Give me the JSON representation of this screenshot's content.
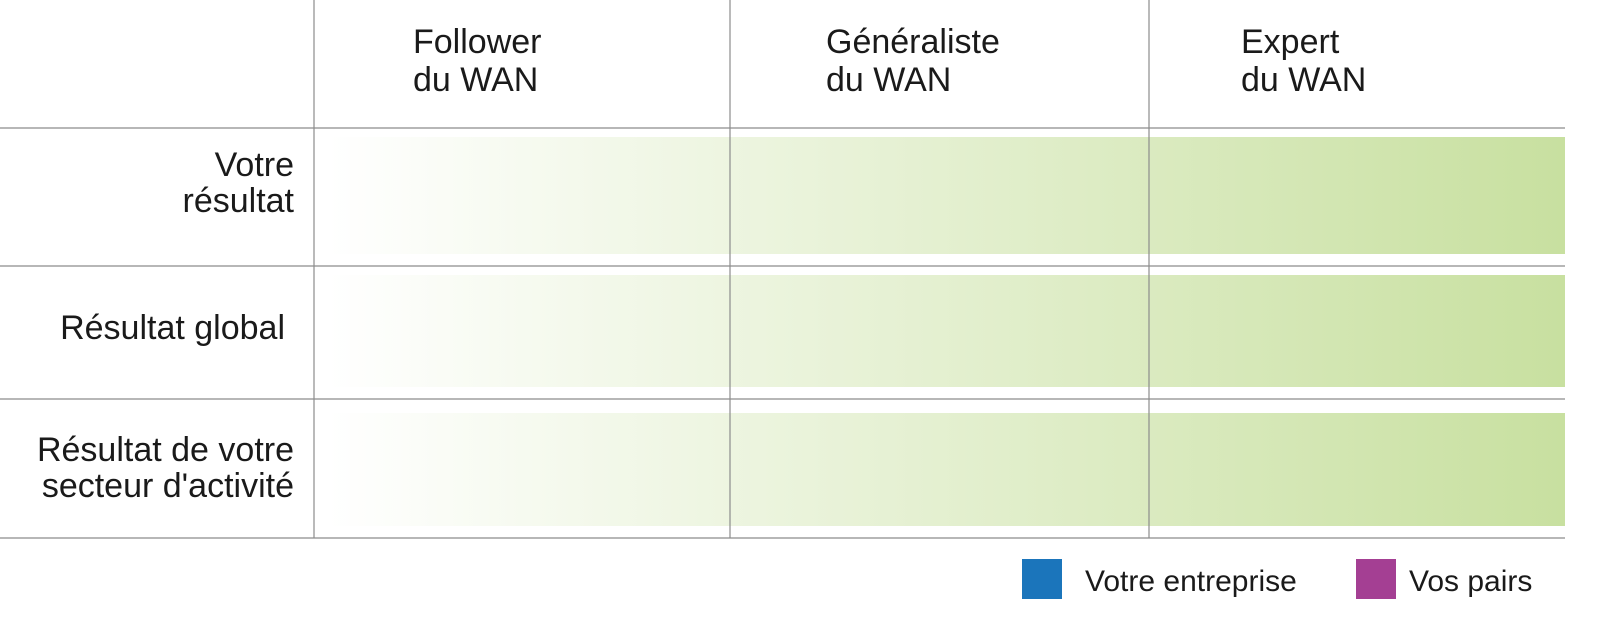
{
  "chart_data": {
    "type": "table",
    "title": "",
    "columns": [
      [
        "Follower",
        "du WAN"
      ],
      [
        "Généraliste",
        "du WAN"
      ],
      [
        "Expert",
        "du WAN"
      ]
    ],
    "rows": [
      [
        "Votre",
        "résultat"
      ],
      [
        "Résultat global"
      ],
      [
        "Résultat de votre",
        "secteur d'activité"
      ]
    ],
    "legend": [
      {
        "name": "Votre entreprise",
        "color": "#1b75bb"
      },
      {
        "name": "Vos pairs",
        "color": "#a43f93"
      }
    ],
    "legend_position": "bottom-right",
    "gradient_colors": [
      "#ffffff",
      "#c8e0a0"
    ],
    "grid": true
  }
}
